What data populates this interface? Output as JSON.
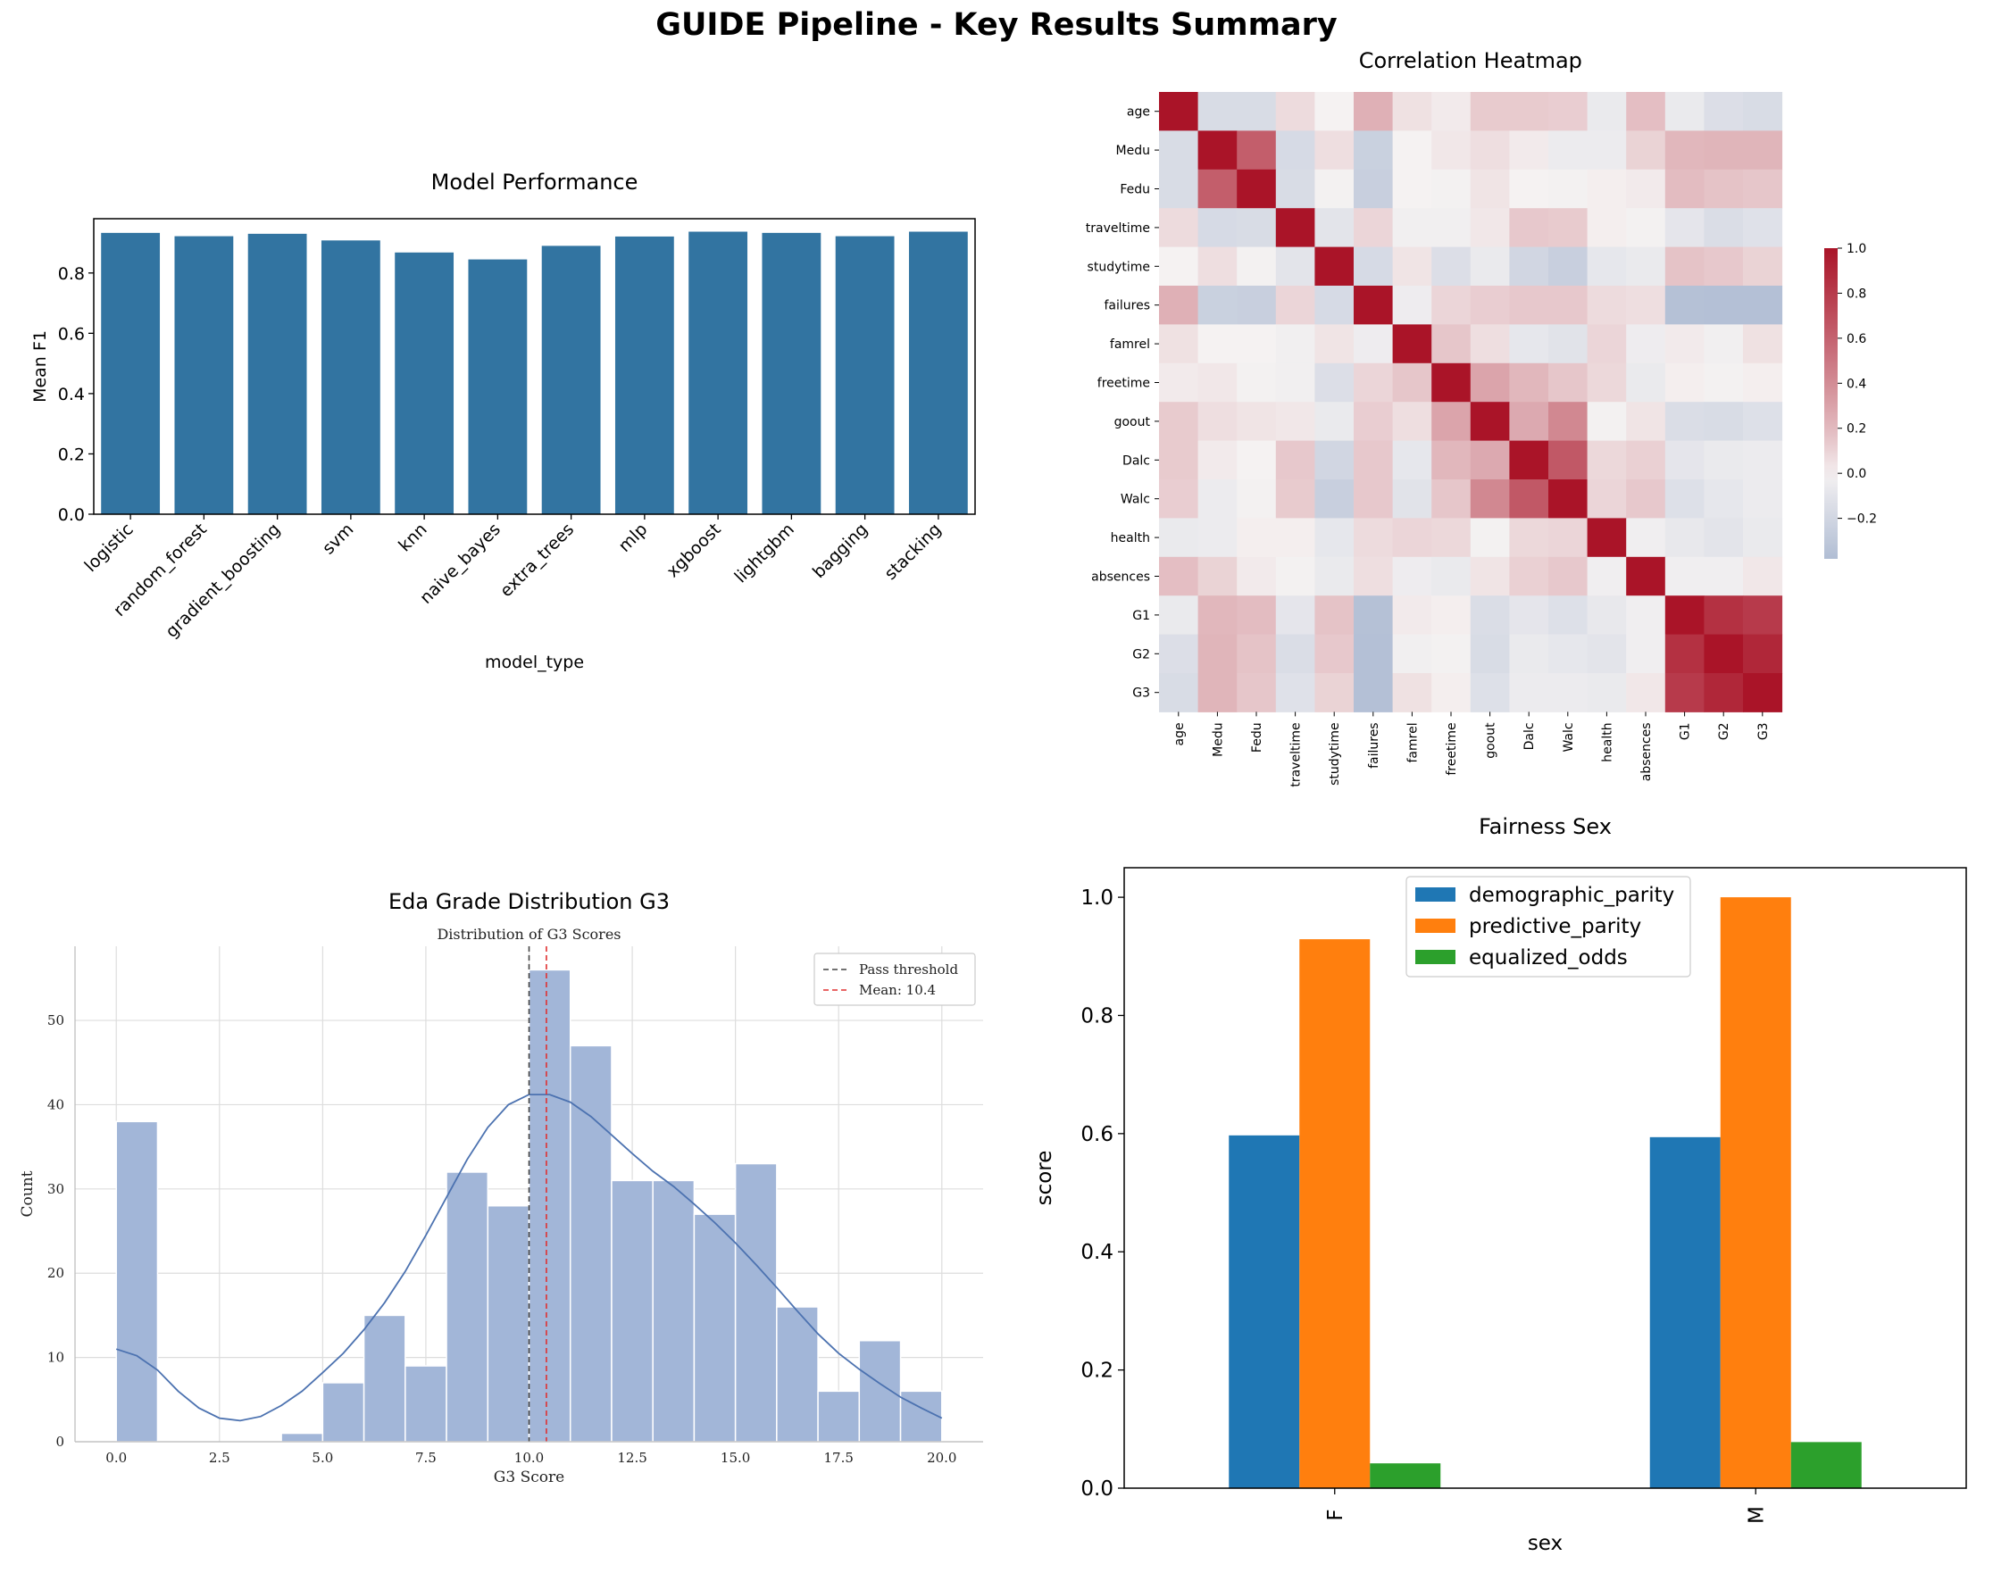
{
  "figure_title": "GUIDE Pipeline - Key Results Summary",
  "chart_data": [
    {
      "id": "model_performance",
      "type": "bar",
      "panel_title": "Model Performance",
      "xlabel": "model_type",
      "ylabel": "Mean F1",
      "ylim": [
        0,
        0.98
      ],
      "yticks": [
        "0.0",
        "0.2",
        "0.4",
        "0.6",
        "0.8"
      ],
      "color": "#3274a1",
      "categories": [
        "logistic",
        "random_forest",
        "gradient_boosting",
        "svm",
        "knn",
        "naive_bayes",
        "extra_trees",
        "mlp",
        "xgboost",
        "lightgbm",
        "bagging",
        "stacking"
      ],
      "values": [
        0.933,
        0.922,
        0.93,
        0.908,
        0.868,
        0.845,
        0.89,
        0.921,
        0.937,
        0.933,
        0.922,
        0.937
      ]
    },
    {
      "id": "correlation_heatmap",
      "type": "heatmap",
      "panel_title": "Correlation Heatmap",
      "labels": [
        "age",
        "Medu",
        "Fedu",
        "traveltime",
        "studytime",
        "failures",
        "famrel",
        "freetime",
        "goout",
        "Dalc",
        "Walc",
        "health",
        "absences",
        "G1",
        "G2",
        "G3"
      ],
      "colorbar_ticks": [
        "1.0",
        "0.8",
        "0.6",
        "0.4",
        "0.2",
        "0.0",
        "−0.2"
      ],
      "vmin": -0.38,
      "vmax": 1.0,
      "matrix": [
        [
          1.0,
          -0.16,
          -0.16,
          0.07,
          0.0,
          0.24,
          0.05,
          0.02,
          0.13,
          0.13,
          0.12,
          -0.06,
          0.18,
          -0.06,
          -0.14,
          -0.16
        ],
        [
          -0.16,
          1.0,
          0.62,
          -0.17,
          0.06,
          -0.24,
          -0.0,
          0.03,
          0.06,
          0.02,
          -0.05,
          -0.05,
          0.1,
          0.21,
          0.22,
          0.22
        ],
        [
          -0.16,
          0.62,
          1.0,
          -0.16,
          -0.01,
          -0.25,
          -0.0,
          -0.01,
          0.04,
          0.0,
          -0.01,
          0.01,
          0.02,
          0.19,
          0.16,
          0.15
        ],
        [
          0.07,
          -0.17,
          -0.16,
          1.0,
          -0.1,
          0.09,
          -0.02,
          -0.02,
          0.03,
          0.14,
          0.13,
          0.01,
          -0.01,
          -0.09,
          -0.15,
          -0.12
        ],
        [
          0.0,
          0.06,
          -0.01,
          -0.1,
          1.0,
          -0.17,
          0.04,
          -0.14,
          -0.06,
          -0.2,
          -0.25,
          -0.08,
          -0.06,
          0.16,
          0.14,
          0.1
        ],
        [
          0.24,
          -0.24,
          -0.25,
          0.09,
          -0.17,
          1.0,
          -0.04,
          0.09,
          0.12,
          0.14,
          0.14,
          0.07,
          0.06,
          -0.35,
          -0.36,
          -0.36
        ],
        [
          0.05,
          -0.0,
          -0.0,
          -0.02,
          0.04,
          -0.04,
          1.0,
          0.15,
          0.06,
          -0.08,
          -0.11,
          0.09,
          -0.04,
          0.02,
          -0.02,
          0.05
        ],
        [
          0.02,
          0.03,
          -0.01,
          -0.02,
          -0.14,
          0.09,
          0.15,
          1.0,
          0.29,
          0.21,
          0.15,
          0.08,
          -0.06,
          0.01,
          -0.01,
          0.01
        ],
        [
          0.13,
          0.06,
          0.04,
          0.03,
          -0.06,
          0.12,
          0.06,
          0.29,
          1.0,
          0.27,
          0.42,
          -0.01,
          0.04,
          -0.15,
          -0.16,
          -0.13
        ],
        [
          0.13,
          0.02,
          0.0,
          0.14,
          -0.2,
          0.14,
          -0.08,
          0.21,
          0.27,
          1.0,
          0.65,
          0.08,
          0.11,
          -0.09,
          -0.06,
          -0.05
        ],
        [
          0.12,
          -0.05,
          -0.01,
          0.13,
          -0.25,
          0.14,
          -0.11,
          0.15,
          0.42,
          0.65,
          1.0,
          0.09,
          0.14,
          -0.13,
          -0.08,
          -0.05
        ],
        [
          -0.06,
          -0.05,
          0.01,
          0.01,
          -0.08,
          0.07,
          0.09,
          0.08,
          -0.01,
          0.08,
          0.09,
          1.0,
          -0.03,
          -0.07,
          -0.1,
          -0.06
        ],
        [
          0.18,
          0.1,
          0.02,
          -0.01,
          -0.06,
          0.06,
          -0.04,
          -0.06,
          0.04,
          0.11,
          0.14,
          -0.03,
          1.0,
          -0.03,
          -0.03,
          0.03
        ],
        [
          -0.06,
          0.21,
          0.19,
          -0.09,
          0.16,
          -0.35,
          0.02,
          0.01,
          -0.15,
          -0.09,
          -0.13,
          -0.07,
          -0.03,
          1.0,
          0.85,
          0.8
        ],
        [
          -0.14,
          0.22,
          0.16,
          -0.15,
          0.14,
          -0.36,
          -0.02,
          -0.01,
          -0.16,
          -0.06,
          -0.08,
          -0.1,
          -0.03,
          0.85,
          1.0,
          0.9
        ],
        [
          -0.16,
          0.22,
          0.15,
          -0.12,
          0.1,
          -0.36,
          0.05,
          0.01,
          -0.13,
          -0.05,
          -0.05,
          -0.06,
          0.03,
          0.8,
          0.9,
          1.0
        ]
      ]
    },
    {
      "id": "eda_grade_distribution",
      "type": "bar",
      "panel_title": "Eda Grade Distribution G3",
      "title": "Distribution of G3 Scores",
      "xlabel": "G3 Score",
      "ylabel": "Count",
      "xlim": [
        -1,
        21
      ],
      "ylim": [
        0,
        58.8
      ],
      "xticks": [
        "0.0",
        "2.5",
        "5.0",
        "7.5",
        "10.0",
        "12.5",
        "15.0",
        "17.5",
        "20.0"
      ],
      "yticks": [
        "0",
        "10",
        "20",
        "30",
        "40",
        "50"
      ],
      "bin_width": 1,
      "bin_starts": [
        0,
        1,
        2,
        3,
        4,
        5,
        6,
        7,
        8,
        9,
        10,
        11,
        12,
        13,
        14,
        15,
        16,
        17,
        18,
        19
      ],
      "counts": [
        38,
        0,
        0,
        0,
        1,
        7,
        15,
        9,
        32,
        28,
        56,
        47,
        31,
        31,
        27,
        33,
        16,
        6,
        12,
        6
      ],
      "kde": [
        [
          0,
          11
        ],
        [
          0.5,
          10.2
        ],
        [
          1,
          8.5
        ],
        [
          1.5,
          6
        ],
        [
          2,
          4
        ],
        [
          2.5,
          2.8
        ],
        [
          3,
          2.5
        ],
        [
          3.5,
          3
        ],
        [
          4,
          4.3
        ],
        [
          4.5,
          6
        ],
        [
          5,
          8.2
        ],
        [
          5.5,
          10.5
        ],
        [
          6,
          13.3
        ],
        [
          6.5,
          16.5
        ],
        [
          7,
          20.2
        ],
        [
          7.5,
          24.5
        ],
        [
          8,
          29
        ],
        [
          8.5,
          33.5
        ],
        [
          9,
          37.3
        ],
        [
          9.5,
          40
        ],
        [
          10,
          41.2
        ],
        [
          10.5,
          41.2
        ],
        [
          11,
          40.3
        ],
        [
          11.5,
          38.6
        ],
        [
          12,
          36.4
        ],
        [
          12.5,
          34.2
        ],
        [
          13,
          32.1
        ],
        [
          13.5,
          30.3
        ],
        [
          14,
          28.2
        ],
        [
          14.5,
          26
        ],
        [
          15,
          23.6
        ],
        [
          15.5,
          21
        ],
        [
          16,
          18.3
        ],
        [
          16.5,
          15.5
        ],
        [
          17,
          12.8
        ],
        [
          17.5,
          10.5
        ],
        [
          18,
          8.6
        ],
        [
          18.5,
          6.9
        ],
        [
          19,
          5.3
        ],
        [
          19.5,
          4
        ],
        [
          20,
          2.8
        ]
      ],
      "lines": [
        {
          "name": "Pass threshold",
          "x": 10,
          "color": "#444444"
        },
        {
          "name": "Mean: 10.4",
          "x": 10.42,
          "color": "#e03030"
        }
      ],
      "legend_placement": "top-right",
      "grid": true,
      "color": "#a2b6d8"
    },
    {
      "id": "fairness_sex",
      "type": "bar",
      "panel_title": "Fairness Sex",
      "xlabel": "sex",
      "ylabel": "score",
      "ylim": [
        0,
        1.05
      ],
      "yticks": [
        "0.0",
        "0.2",
        "0.4",
        "0.6",
        "0.8",
        "1.0"
      ],
      "categories": [
        "F",
        "M"
      ],
      "series": [
        {
          "name": "demographic_parity",
          "values": [
            0.597,
            0.594
          ],
          "color": "#1f77b4"
        },
        {
          "name": "predictive_parity",
          "values": [
            0.929,
            1.0
          ],
          "color": "#ff7f0e"
        },
        {
          "name": "equalized_odds",
          "values": [
            0.042,
            0.078
          ],
          "color": "#2ca02c"
        }
      ],
      "legend_placement": "top-center"
    }
  ]
}
